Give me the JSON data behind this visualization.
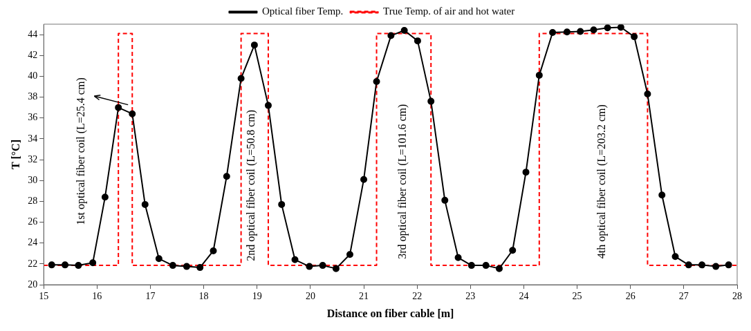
{
  "chart_data": {
    "type": "line",
    "xlabel": "Distance on fiber cable [m]",
    "ylabel": "T [°C]",
    "xlim": [
      15,
      28
    ],
    "xticks": [
      15,
      16,
      17,
      18,
      19,
      20,
      21,
      22,
      23,
      24,
      25,
      26,
      27,
      28
    ],
    "ylim": [
      20,
      45
    ],
    "yticks": [
      20,
      22,
      24,
      26,
      28,
      30,
      32,
      34,
      36,
      38,
      40,
      42,
      44
    ],
    "grid": false,
    "legend": "top",
    "series": [
      {
        "name": "Optical fiber Temp.",
        "color": "#000000",
        "marker": "circle",
        "line_style": "solid",
        "x": [
          15.15,
          15.4,
          15.65,
          15.92,
          16.15,
          16.4,
          16.66,
          16.9,
          17.16,
          17.42,
          17.68,
          17.93,
          18.18,
          18.43,
          18.7,
          18.95,
          19.21,
          19.46,
          19.71,
          19.98,
          20.23,
          20.48,
          20.74,
          21.0,
          21.24,
          21.51,
          21.76,
          22.01,
          22.26,
          22.52,
          22.77,
          23.02,
          23.29,
          23.54,
          23.79,
          24.04,
          24.29,
          24.54,
          24.81,
          25.06,
          25.31,
          25.57,
          25.82,
          26.07,
          26.32,
          26.59,
          26.84,
          27.09,
          27.34,
          27.6,
          27.84
        ],
        "values": [
          21.9,
          21.9,
          21.85,
          22.1,
          28.4,
          37.0,
          36.4,
          27.7,
          22.5,
          21.85,
          21.75,
          21.65,
          23.25,
          30.4,
          39.8,
          43.0,
          37.2,
          27.7,
          22.4,
          21.75,
          21.85,
          21.55,
          22.9,
          30.1,
          39.5,
          43.9,
          44.4,
          43.4,
          37.6,
          28.1,
          22.6,
          21.85,
          21.85,
          21.55,
          23.3,
          30.8,
          40.1,
          44.2,
          44.25,
          44.3,
          44.45,
          44.65,
          44.7,
          43.8,
          38.3,
          28.6,
          22.7,
          21.9,
          21.9,
          21.75,
          21.9
        ]
      },
      {
        "name": "True Temp. of air and hot water",
        "color": "#ff0000",
        "marker": "none",
        "line_style": "dashed",
        "x": [
          15,
          16.4,
          16.4,
          16.66,
          16.66,
          18.7,
          18.7,
          19.21,
          19.21,
          21.24,
          21.24,
          22.26,
          22.26,
          24.29,
          24.29,
          26.32,
          26.32,
          28
        ],
        "values": [
          21.85,
          21.85,
          44.1,
          44.1,
          21.85,
          21.85,
          44.1,
          44.1,
          21.85,
          21.85,
          44.1,
          44.1,
          21.85,
          21.85,
          44.1,
          44.1,
          21.85,
          21.85
        ]
      }
    ],
    "annotations": [
      {
        "text": "1st optical fiber coil (L=25.4 cm)",
        "x": 16.4,
        "y": 37.0
      },
      "2nd optical fiber coil (L=50.8 cm)",
      "3rd optical fiber coil (L=101.6 cm)",
      "4th optical fiber coil (L=203.2 cm)"
    ]
  }
}
